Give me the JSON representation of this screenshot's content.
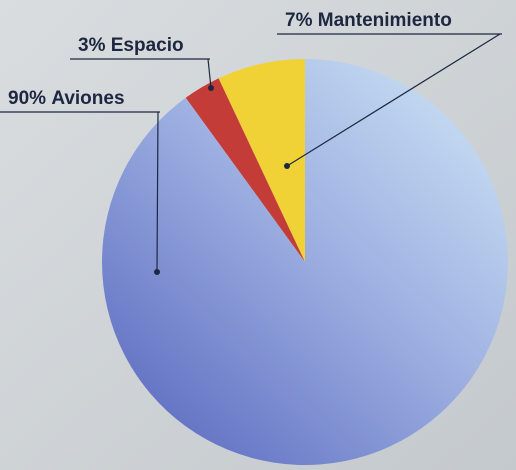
{
  "chart_data": {
    "type": "pie",
    "categories": [
      "Mantenimiento",
      "Espacio",
      "Aviones"
    ],
    "values": [
      7,
      3,
      90
    ],
    "value_labels": [
      "7%",
      "3%",
      "90%"
    ],
    "colors": [
      "#f0d236",
      "#c43c38",
      "#8ea0dc"
    ]
  }
}
